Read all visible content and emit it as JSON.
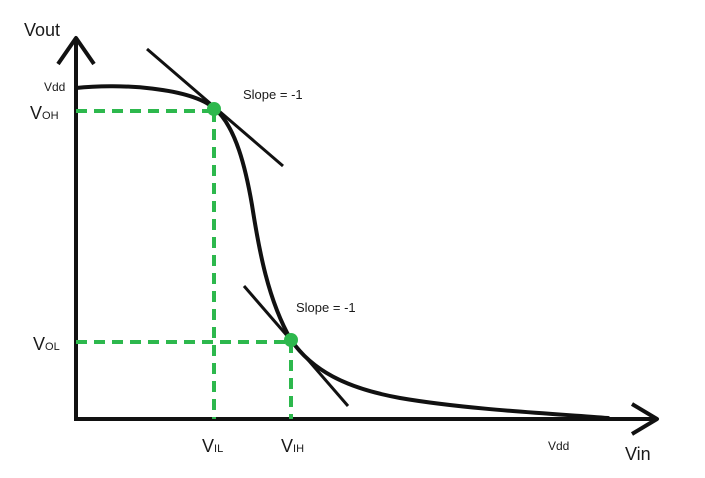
{
  "axes": {
    "y_label": "Vout",
    "x_label": "Vin"
  },
  "labels": {
    "vdd_y": "Vdd",
    "vdd_x": "Vdd",
    "voh_main": "V",
    "voh_sub": "OH",
    "vol_main": "V",
    "vol_sub": "OL",
    "vil_main": "V",
    "vil_sub": "IL",
    "vih_main": "V",
    "vih_sub": "IH",
    "slope_top": "Slope = -1",
    "slope_bottom": "Slope = -1"
  },
  "colors": {
    "curve": "#111111",
    "guide": "#2db84d",
    "point": "#2db84d"
  }
}
